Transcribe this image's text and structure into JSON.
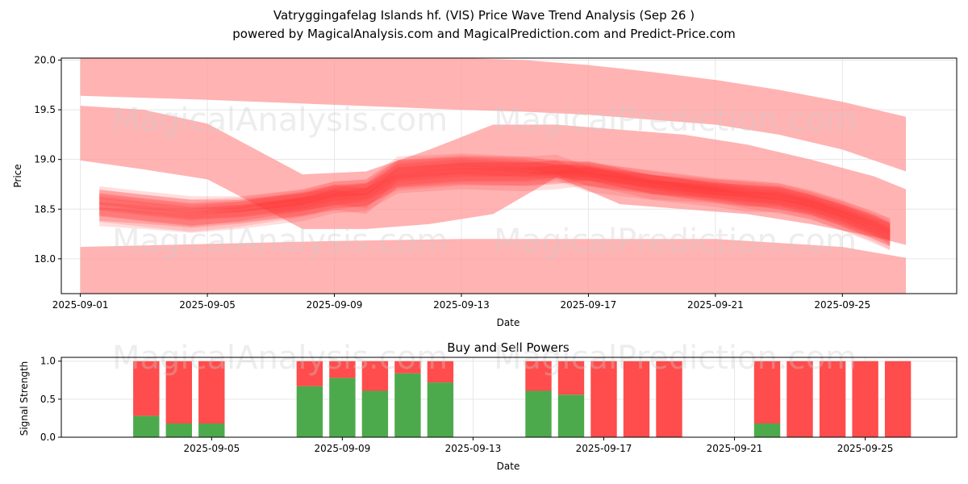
{
  "title_line1": "Vatryggingafelag Islands hf. (VIS) Price Wave Trend Analysis (Sep 26 )",
  "title_line2": "powered by MagicalAnalysis.com and MagicalPrediction.com and Predict-Price.com",
  "watermark_1": "MagicalAnalysis.com",
  "watermark_2": "MagicalPrediction.com",
  "colors": {
    "band": "#ff9999",
    "wave": "#ff3333",
    "buy": "#4caa4c",
    "sell": "#ff4c4c",
    "grid": "#e6e6e6"
  },
  "chart_data": [
    {
      "type": "area",
      "title": "",
      "xlabel": "Date",
      "ylabel": "Price",
      "xlim_days": [
        -0.6,
        27.6
      ],
      "ylim": [
        17.65,
        20.02
      ],
      "x_ticks": [
        {
          "day": 0,
          "label": "2025-09-01"
        },
        {
          "day": 4,
          "label": "2025-09-05"
        },
        {
          "day": 8,
          "label": "2025-09-09"
        },
        {
          "day": 12,
          "label": "2025-09-13"
        },
        {
          "day": 16,
          "label": "2025-09-17"
        },
        {
          "day": 20,
          "label": "2025-09-21"
        },
        {
          "day": 24,
          "label": "2025-09-25"
        }
      ],
      "y_ticks": [
        {
          "value": 18.0,
          "label": "18.0"
        },
        {
          "value": 18.5,
          "label": "18.5"
        },
        {
          "value": 19.0,
          "label": "19.0"
        },
        {
          "value": 19.5,
          "label": "19.5"
        },
        {
          "value": 20.0,
          "label": "20.0"
        }
      ],
      "bands": [
        {
          "name": "upper-band",
          "x": [
            0,
            4,
            8,
            12,
            14,
            16,
            18,
            20,
            22,
            24,
            26
          ],
          "upper": [
            20.02,
            20.02,
            20.02,
            20.02,
            20.0,
            19.95,
            19.88,
            19.8,
            19.7,
            19.58,
            19.43
          ],
          "lower": [
            19.64,
            19.6,
            19.55,
            19.5,
            19.48,
            19.45,
            19.4,
            19.35,
            19.25,
            19.1,
            18.88
          ]
        },
        {
          "name": "middle-band",
          "x": [
            0,
            2,
            4,
            7,
            9,
            11,
            13,
            15,
            17,
            19,
            21,
            23,
            25,
            26
          ],
          "upper": [
            19.54,
            19.5,
            19.36,
            18.85,
            18.88,
            19.1,
            19.35,
            19.35,
            19.3,
            19.25,
            19.15,
            19.0,
            18.83,
            18.7
          ],
          "lower": [
            18.99,
            18.9,
            18.8,
            18.3,
            18.3,
            18.35,
            18.45,
            18.82,
            18.55,
            18.5,
            18.45,
            18.35,
            18.22,
            18.14
          ]
        },
        {
          "name": "lower-band",
          "x": [
            0,
            4,
            8,
            12,
            16,
            20,
            24,
            26
          ],
          "upper": [
            18.12,
            18.15,
            18.18,
            18.2,
            18.2,
            18.2,
            18.12,
            18.01
          ],
          "lower": [
            17.6,
            17.6,
            17.6,
            17.6,
            17.6,
            17.6,
            17.6,
            17.6
          ]
        }
      ],
      "waves": [
        {
          "name": "wave-1",
          "x": [
            0.6,
            2,
            3.5,
            5,
            7,
            8,
            9,
            10,
            12,
            14,
            15,
            16,
            18,
            20,
            21,
            22,
            23,
            24,
            25,
            25.5
          ],
          "y": [
            18.55,
            18.5,
            18.45,
            18.48,
            18.55,
            18.6,
            18.65,
            18.8,
            18.85,
            18.85,
            18.88,
            18.85,
            18.78,
            18.7,
            18.68,
            18.65,
            18.58,
            18.48,
            18.35,
            18.3
          ],
          "width": 0.14
        },
        {
          "name": "wave-2",
          "x": [
            0.6,
            2,
            3.5,
            5,
            7,
            8,
            9,
            10,
            12,
            14,
            15,
            16,
            18,
            20,
            21,
            22,
            23,
            24,
            25,
            25.5
          ],
          "y": [
            18.5,
            18.45,
            18.4,
            18.45,
            18.55,
            18.62,
            18.58,
            18.85,
            18.9,
            18.9,
            18.92,
            18.8,
            18.72,
            18.65,
            18.6,
            18.6,
            18.52,
            18.42,
            18.3,
            18.22
          ],
          "width": 0.16
        },
        {
          "name": "wave-3",
          "x": [
            0.6,
            2,
            3.5,
            5,
            7,
            8,
            9,
            10,
            12,
            14,
            15,
            16,
            18,
            20,
            21,
            22,
            23,
            24,
            25,
            25.5
          ],
          "y": [
            18.6,
            18.55,
            18.5,
            18.52,
            18.6,
            18.68,
            18.7,
            18.9,
            18.95,
            18.92,
            18.9,
            18.88,
            18.75,
            18.66,
            18.6,
            18.55,
            18.5,
            18.38,
            18.25,
            18.18
          ],
          "width": 0.12
        },
        {
          "name": "wave-4",
          "x": [
            0.6,
            2,
            3.5,
            5,
            7,
            8,
            9,
            10,
            12,
            14,
            15,
            16,
            18,
            20,
            21,
            22,
            23,
            24,
            25,
            25.5
          ],
          "y": [
            18.45,
            18.42,
            18.38,
            18.42,
            18.5,
            18.58,
            18.6,
            18.78,
            18.82,
            18.8,
            18.82,
            18.86,
            18.72,
            18.68,
            18.65,
            18.62,
            18.55,
            18.45,
            18.32,
            18.25
          ],
          "width": 0.15
        },
        {
          "name": "wave-5",
          "x": [
            0.6,
            2,
            3.5,
            5,
            7,
            8,
            9,
            10,
            12,
            14,
            15,
            16,
            18,
            20,
            21,
            22,
            23,
            24,
            25,
            25.5
          ],
          "y": [
            18.65,
            18.6,
            18.55,
            18.55,
            18.62,
            18.7,
            18.72,
            18.95,
            18.98,
            18.95,
            18.9,
            18.9,
            18.8,
            18.72,
            18.7,
            18.68,
            18.6,
            18.5,
            18.4,
            18.32
          ],
          "width": 0.1
        }
      ]
    },
    {
      "type": "bar",
      "title": "Buy and Sell Powers",
      "xlabel": "Date",
      "ylabel": "Signal Strength",
      "xlim_days": [
        -0.6,
        26.8
      ],
      "ylim": [
        0,
        1.05
      ],
      "x_ticks": [
        {
          "day": 4,
          "label": "2025-09-05"
        },
        {
          "day": 8,
          "label": "2025-09-09"
        },
        {
          "day": 12,
          "label": "2025-09-13"
        },
        {
          "day": 16,
          "label": "2025-09-17"
        },
        {
          "day": 20,
          "label": "2025-09-21"
        },
        {
          "day": 24,
          "label": "2025-09-25"
        }
      ],
      "y_ticks": [
        {
          "value": 0.0,
          "label": "0.0"
        },
        {
          "value": 0.5,
          "label": "0.5"
        },
        {
          "value": 1.0,
          "label": "1.0"
        }
      ],
      "series": [
        {
          "name": "buy",
          "color": "#4caa4c"
        },
        {
          "name": "sell",
          "color": "#ff4c4c"
        }
      ],
      "bars": [
        {
          "day": 2,
          "buy": 0.28
        },
        {
          "day": 3,
          "buy": 0.18
        },
        {
          "day": 4,
          "buy": 0.18
        },
        {
          "day": 7,
          "buy": 0.67
        },
        {
          "day": 8,
          "buy": 0.78
        },
        {
          "day": 9,
          "buy": 0.61
        },
        {
          "day": 10,
          "buy": 0.84
        },
        {
          "day": 11,
          "buy": 0.72
        },
        {
          "day": 14,
          "buy": 0.61
        },
        {
          "day": 15,
          "buy": 0.56
        },
        {
          "day": 16,
          "buy": 0.0
        },
        {
          "day": 17,
          "buy": 0.0
        },
        {
          "day": 18,
          "buy": 0.0
        },
        {
          "day": 21,
          "buy": 0.18
        },
        {
          "day": 22,
          "buy": 0.0
        },
        {
          "day": 23,
          "buy": 0.0
        },
        {
          "day": 24,
          "buy": 0.0
        },
        {
          "day": 25,
          "buy": 0.0
        }
      ]
    }
  ]
}
